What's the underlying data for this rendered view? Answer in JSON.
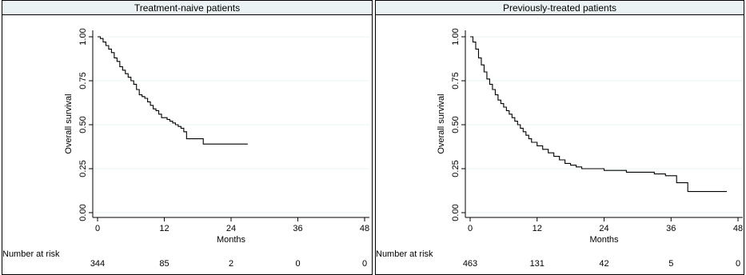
{
  "chart_data": [
    {
      "type": "line",
      "title": "Treatment-naive patients",
      "xlabel": "Months",
      "ylabel": "Overall survival",
      "xlim": [
        0,
        48
      ],
      "ylim": [
        0,
        1
      ],
      "xticks": [
        "0",
        "12",
        "24",
        "36",
        "48"
      ],
      "yticks": [
        "0.00",
        "0.25",
        "0.50",
        "0.75",
        "1.00"
      ],
      "grid": true,
      "step": true,
      "x": [
        0,
        0.5,
        1,
        1.5,
        2,
        2.5,
        3,
        3.5,
        4,
        4.5,
        5,
        5.5,
        6,
        6.5,
        7,
        7.5,
        8,
        8.5,
        9,
        9.5,
        10,
        10.5,
        11,
        11.5,
        12,
        12.5,
        13,
        13.5,
        14,
        14.5,
        15,
        15.5,
        16,
        17,
        18,
        19,
        20,
        27
      ],
      "y": [
        1.0,
        0.99,
        0.97,
        0.95,
        0.93,
        0.91,
        0.88,
        0.86,
        0.83,
        0.81,
        0.79,
        0.77,
        0.75,
        0.73,
        0.7,
        0.67,
        0.66,
        0.65,
        0.63,
        0.61,
        0.59,
        0.58,
        0.56,
        0.54,
        0.54,
        0.53,
        0.52,
        0.51,
        0.5,
        0.49,
        0.48,
        0.46,
        0.42,
        0.42,
        0.42,
        0.39,
        0.39,
        0.39
      ],
      "risk_label": "Number at risk",
      "risk_x": [
        "0",
        "12",
        "24",
        "36",
        "48"
      ],
      "risk_values": [
        "344",
        "85",
        "2",
        "0",
        "0"
      ]
    },
    {
      "type": "line",
      "title": "Previously-treated patients",
      "xlabel": "Months",
      "ylabel": "Overall survival",
      "xlim": [
        0,
        48
      ],
      "ylim": [
        0,
        1
      ],
      "xticks": [
        "0",
        "12",
        "24",
        "36",
        "48"
      ],
      "yticks": [
        "0.00",
        "0.25",
        "0.50",
        "0.75",
        "1.00"
      ],
      "grid": true,
      "step": true,
      "x": [
        0,
        0.5,
        1,
        1.5,
        2,
        2.5,
        3,
        3.5,
        4,
        4.5,
        5,
        5.5,
        6,
        6.5,
        7,
        7.5,
        8,
        8.5,
        9,
        9.5,
        10,
        10.5,
        11,
        12,
        13,
        14,
        15,
        16,
        17,
        18,
        19,
        20,
        22,
        24,
        25,
        28,
        30,
        33,
        35,
        36,
        37,
        38,
        39,
        40,
        42,
        46
      ],
      "y": [
        1.0,
        0.97,
        0.93,
        0.88,
        0.84,
        0.8,
        0.76,
        0.73,
        0.7,
        0.67,
        0.64,
        0.62,
        0.6,
        0.58,
        0.56,
        0.54,
        0.52,
        0.5,
        0.48,
        0.46,
        0.44,
        0.42,
        0.4,
        0.38,
        0.36,
        0.34,
        0.32,
        0.3,
        0.28,
        0.27,
        0.26,
        0.25,
        0.25,
        0.24,
        0.24,
        0.23,
        0.23,
        0.22,
        0.21,
        0.21,
        0.17,
        0.17,
        0.12,
        0.12,
        0.12,
        0.12
      ],
      "risk_label": "Number at risk",
      "risk_x": [
        "0",
        "12",
        "24",
        "36",
        "48"
      ],
      "risk_values": [
        "463",
        "131",
        "42",
        "5",
        "0"
      ]
    }
  ]
}
